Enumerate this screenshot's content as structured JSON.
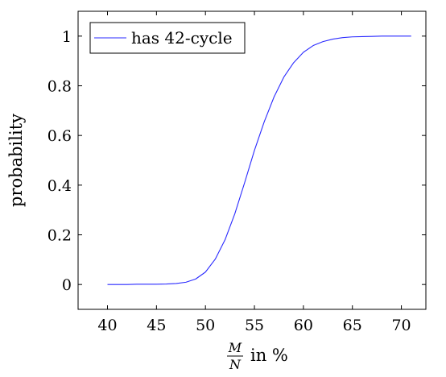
{
  "chart_data": {
    "type": "line",
    "xlabel": {
      "numerator": "M",
      "denominator": "N",
      "suffix": "in %"
    },
    "ylabel": "probability",
    "xlim": [
      37,
      72.5
    ],
    "ylim": [
      -0.1,
      1.1
    ],
    "xticks": [
      40,
      45,
      50,
      55,
      60,
      65,
      70
    ],
    "yticks": [
      0,
      0.2,
      0.4,
      0.6,
      0.8,
      1
    ],
    "grid": false,
    "legend_position": "top-left",
    "series": [
      {
        "name": "has 42-cycle",
        "color": "#2a2aff",
        "x": [
          40,
          41,
          42,
          43,
          44,
          45,
          46,
          47,
          48,
          49,
          50,
          51,
          52,
          53,
          54,
          55,
          56,
          57,
          58,
          59,
          60,
          61,
          62,
          63,
          64,
          65,
          66,
          67,
          68,
          69,
          70,
          71
        ],
        "y": [
          0,
          0,
          0,
          0.001,
          0.001,
          0.001,
          0.002,
          0.004,
          0.009,
          0.022,
          0.05,
          0.102,
          0.18,
          0.285,
          0.41,
          0.54,
          0.655,
          0.755,
          0.835,
          0.893,
          0.935,
          0.962,
          0.978,
          0.988,
          0.994,
          0.997,
          0.998,
          0.999,
          1,
          1,
          1,
          1
        ]
      }
    ]
  }
}
